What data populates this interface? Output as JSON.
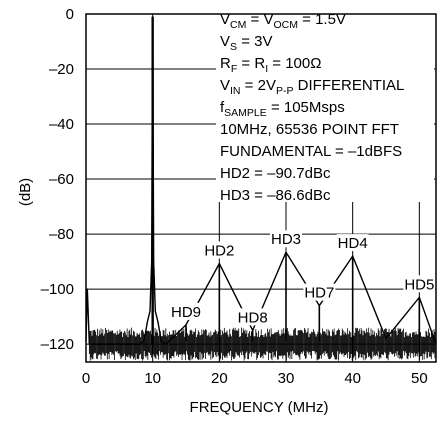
{
  "chart_data": {
    "type": "line",
    "xlabel": "FREQUENCY (MHz)",
    "ylabel": "(dB)",
    "xlim": [
      0,
      52.5
    ],
    "ylim": [
      -126.5,
      0
    ],
    "x_ticks": [
      "0",
      "10",
      "20",
      "30",
      "40",
      "50"
    ],
    "y_ticks": [
      "0",
      "–20",
      "–40",
      "–60",
      "–80",
      "–100",
      "–120"
    ],
    "grid": "both",
    "noise_floor_db": -120,
    "series": [
      {
        "points": [
          {
            "x": 0.0,
            "y": -119
          },
          {
            "x": 0.2,
            "y": -100
          },
          {
            "x": 0.5,
            "y": -120
          },
          {
            "x": 8.0,
            "y": -120
          },
          {
            "x": 8.7,
            "y": -119
          },
          {
            "x": 9.2,
            "y": -112
          },
          {
            "x": 9.6,
            "y": -108
          },
          {
            "x": 9.85,
            "y": -90
          },
          {
            "x": 9.95,
            "y": -30
          },
          {
            "x": 10.0,
            "y": -1
          },
          {
            "x": 10.05,
            "y": -30
          },
          {
            "x": 10.15,
            "y": -90
          },
          {
            "x": 10.4,
            "y": -108
          },
          {
            "x": 10.8,
            "y": -112
          },
          {
            "x": 11.3,
            "y": -119
          },
          {
            "x": 12.0,
            "y": -120
          },
          {
            "x": 15.0,
            "y": -113
          },
          {
            "x": 20.0,
            "y": -90.7
          },
          {
            "x": 25.0,
            "y": -115
          },
          {
            "x": 30.0,
            "y": -86.6
          },
          {
            "x": 35.0,
            "y": -106
          },
          {
            "x": 40.0,
            "y": -88
          },
          {
            "x": 45.0,
            "y": -118
          },
          {
            "x": 50.0,
            "y": -103
          },
          {
            "x": 52.5,
            "y": -120
          }
        ]
      }
    ],
    "harmonics": [
      {
        "label": "HD2",
        "x": 20,
        "y": -90.7
      },
      {
        "label": "HD3",
        "x": 30,
        "y": -86.6
      },
      {
        "label": "HD4",
        "x": 40,
        "y": -88
      },
      {
        "label": "HD5",
        "x": 50,
        "y": -103
      },
      {
        "label": "HD7",
        "x": 35,
        "y": -106
      },
      {
        "label": "HD8",
        "x": 25,
        "y": -115
      },
      {
        "label": "HD9",
        "x": 15,
        "y": -113
      }
    ],
    "conditions": {
      "l1": {
        "a": "V",
        "a_sub": "CM",
        "b": " = V",
        "b_sub": "OCM",
        "c": " = 1.5V"
      },
      "l2": {
        "a": "V",
        "a_sub": "S",
        "c": " = 3V"
      },
      "l3": {
        "a": "R",
        "a_sub": "F",
        "b": " = R",
        "b_sub": "I",
        "c": " = 100Ω"
      },
      "l4": {
        "a": "V",
        "a_sub": "IN",
        "b": " = 2V",
        "b_sub": "P-P",
        "c": " DIFFERENTIAL"
      },
      "l5": {
        "a": "f",
        "a_sub": "SAMPLE",
        "c": " = 105Msps"
      },
      "l6": "10MHz, 65536 POINT FFT",
      "l7": "FUNDAMENTAL = –1dBFS",
      "l8": "HD2 = –90.7dBc",
      "l9": "HD3 = –86.6dBc"
    },
    "colors": {
      "trace": "#000000",
      "grid": "#000000",
      "background": "#ffffff"
    }
  }
}
